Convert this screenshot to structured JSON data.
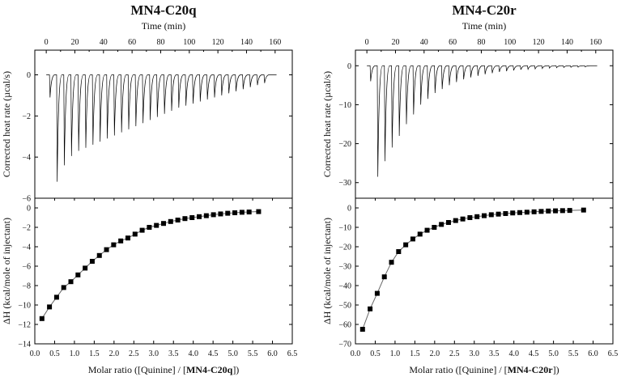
{
  "chart_data": [
    {
      "type": "line",
      "title": "MN4-C20q",
      "top": {
        "xlabel": "Time (min)",
        "ylabel": "Corrected heat rate (µcal/s)",
        "xlim": [
          -8,
          172
        ],
        "ylim": [
          -6,
          1.2
        ],
        "xticks": [
          0,
          20,
          40,
          60,
          80,
          100,
          120,
          140,
          160
        ],
        "yticks": [
          0,
          -2,
          -4,
          -6
        ],
        "injection_times": [
          2.5,
          7.5,
          12.5,
          17.5,
          22.5,
          27.5,
          32.5,
          37.5,
          42.5,
          47.5,
          52.5,
          57.5,
          62.5,
          67.5,
          72.5,
          77.5,
          82.5,
          87.5,
          92.5,
          97.5,
          102.5,
          107.5,
          112.5,
          117.5,
          122.5,
          127.5,
          132.5,
          137.5,
          142.5,
          147.5,
          152.5
        ],
        "peak_values": [
          -1.1,
          -5.2,
          -4.4,
          -3.95,
          -3.7,
          -3.55,
          -3.4,
          -3.25,
          -3.1,
          -2.95,
          -2.8,
          -2.65,
          -2.5,
          -2.35,
          -2.2,
          -2.05,
          -1.9,
          -1.75,
          -1.6,
          -1.5,
          -1.4,
          -1.3,
          -1.2,
          -1.1,
          -1.0,
          -0.9,
          -0.8,
          -0.7,
          -0.6,
          -0.5,
          -0.4
        ],
        "baseline": 0,
        "series_end_time": 161
      },
      "bottom": {
        "xlabel_prefix": "Molar ratio ([Quinine] / [",
        "xlabel_bold": "MN4-C20q",
        "xlabel_suffix": "])",
        "ylabel": "ΔH (kcal/mole of injectant)",
        "xlim": [
          0,
          6.5
        ],
        "ylim": [
          -14,
          1
        ],
        "xticks": [
          0.0,
          0.5,
          1.0,
          1.5,
          2.0,
          2.5,
          3.0,
          3.5,
          4.0,
          4.5,
          5.0,
          5.5,
          6.0,
          6.5
        ],
        "xtick_labels": [
          "0.0",
          "0.5",
          "1.0",
          "1.5",
          "2.0",
          "2.5",
          "3.0",
          "3.5",
          "4.0",
          "4.5",
          "5.0",
          "5.5",
          "6.0",
          "6.5"
        ],
        "yticks": [
          0,
          -2,
          -4,
          -6,
          -8,
          -10,
          -12,
          -14
        ],
        "x": [
          0.18,
          0.37,
          0.55,
          0.73,
          0.91,
          1.09,
          1.27,
          1.45,
          1.63,
          1.81,
          1.99,
          2.17,
          2.35,
          2.53,
          2.71,
          2.89,
          3.07,
          3.25,
          3.43,
          3.61,
          3.79,
          3.97,
          4.15,
          4.33,
          4.51,
          4.69,
          4.87,
          5.05,
          5.23,
          5.41,
          5.65
        ],
        "y": [
          -11.4,
          -10.2,
          -9.2,
          -8.2,
          -7.6,
          -6.9,
          -6.2,
          -5.5,
          -4.9,
          -4.3,
          -3.8,
          -3.4,
          -3.1,
          -2.7,
          -2.3,
          -2.0,
          -1.8,
          -1.6,
          -1.4,
          -1.25,
          -1.1,
          -1.0,
          -0.9,
          -0.8,
          -0.7,
          -0.62,
          -0.55,
          -0.5,
          -0.45,
          -0.42,
          -0.38
        ]
      }
    },
    {
      "type": "line",
      "title": "MN4-C20r",
      "top": {
        "xlabel": "Time (min)",
        "ylabel": "Corrected heat rate (µcal/s)",
        "xlim": [
          -8,
          172
        ],
        "ylim": [
          -34,
          4
        ],
        "xticks": [
          0,
          20,
          40,
          60,
          80,
          100,
          120,
          140,
          160
        ],
        "yticks": [
          0,
          -10,
          -20,
          -30
        ],
        "injection_times": [
          2.5,
          7.5,
          12.5,
          17.5,
          22.5,
          27.5,
          32.5,
          37.5,
          42.5,
          47.5,
          52.5,
          57.5,
          62.5,
          67.5,
          72.5,
          77.5,
          82.5,
          87.5,
          92.5,
          97.5,
          102.5,
          107.5,
          112.5,
          117.5,
          122.5,
          127.5,
          132.5,
          137.5,
          142.5,
          147.5,
          152.5
        ],
        "peak_values": [
          -4,
          -28.5,
          -24.5,
          -21,
          -18,
          -15,
          -12.5,
          -10,
          -8.5,
          -7,
          -6,
          -5,
          -4.2,
          -3.5,
          -3,
          -2.6,
          -2.2,
          -1.9,
          -1.6,
          -1.4,
          -1.2,
          -1.0,
          -0.9,
          -0.8,
          -0.7,
          -0.6,
          -0.5,
          -0.45,
          -0.4,
          -0.35,
          -0.3
        ],
        "baseline": 0,
        "series_end_time": 161
      },
      "bottom": {
        "xlabel_prefix": "Molar ratio ([Quinine] / [",
        "xlabel_bold": "MN4-C20r",
        "xlabel_suffix": "])",
        "ylabel": "ΔH (kcal/mole of injectant)",
        "xlim": [
          0,
          6.5
        ],
        "ylim": [
          -70,
          5
        ],
        "xticks": [
          0.0,
          0.5,
          1.0,
          1.5,
          2.0,
          2.5,
          3.0,
          3.5,
          4.0,
          4.5,
          5.0,
          5.5,
          6.0,
          6.5
        ],
        "xtick_labels": [
          "0.0",
          "0.5",
          "1.0",
          "1.5",
          "2.0",
          "2.5",
          "3.0",
          "3.5",
          "4.0",
          "4.5",
          "5.0",
          "5.5",
          "6.0",
          "6.5"
        ],
        "yticks": [
          0,
          -10,
          -20,
          -30,
          -40,
          -50,
          -60,
          -70
        ],
        "x": [
          0.18,
          0.37,
          0.55,
          0.73,
          0.91,
          1.09,
          1.27,
          1.45,
          1.63,
          1.81,
          1.99,
          2.17,
          2.35,
          2.53,
          2.71,
          2.89,
          3.07,
          3.25,
          3.43,
          3.61,
          3.79,
          3.97,
          4.15,
          4.33,
          4.51,
          4.69,
          4.87,
          5.05,
          5.23,
          5.41,
          5.76
        ],
        "y": [
          -62.5,
          -52,
          -44,
          -35.5,
          -28,
          -22.5,
          -19,
          -16,
          -13.5,
          -11.5,
          -10,
          -8.5,
          -7.5,
          -6.5,
          -5.7,
          -5,
          -4.5,
          -4,
          -3.5,
          -3.2,
          -2.9,
          -2.6,
          -2.4,
          -2.2,
          -2,
          -1.8,
          -1.6,
          -1.5,
          -1.4,
          -1.3,
          -1.1
        ]
      }
    }
  ]
}
